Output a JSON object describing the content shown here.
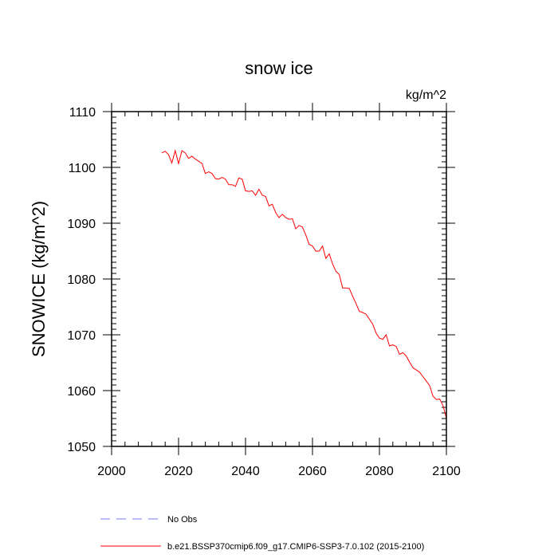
{
  "chart_data": {
    "type": "line",
    "title": "snow ice",
    "units_label": "kg/m^2",
    "ylabel": "SNOWICE  (kg/m^2)",
    "xlabel": "",
    "xlim": [
      2000,
      2100
    ],
    "ylim": [
      1050,
      1110
    ],
    "xticks": [
      2000,
      2020,
      2040,
      2060,
      2080,
      2100
    ],
    "yticks": [
      1050,
      1060,
      1070,
      1080,
      1090,
      1100,
      1110
    ],
    "grid": false,
    "legend_position": "bottom",
    "colors": {
      "model": "#ff0000",
      "obs": "#7777ff"
    },
    "series": [
      {
        "name": "b.e21.BSSP370cmip6.f09_g17.CMIP6-SSP3-7.0.102 (2015-2100)",
        "style": "solid",
        "x": [
          2015,
          2016,
          2017,
          2018,
          2019,
          2020,
          2021,
          2022,
          2023,
          2024,
          2025,
          2026,
          2027,
          2028,
          2029,
          2030,
          2031,
          2032,
          2033,
          2034,
          2035,
          2036,
          2037,
          2038,
          2039,
          2040,
          2041,
          2042,
          2043,
          2044,
          2045,
          2046,
          2047,
          2048,
          2049,
          2050,
          2051,
          2052,
          2053,
          2054,
          2055,
          2056,
          2057,
          2058,
          2059,
          2060,
          2061,
          2062,
          2063,
          2064,
          2065,
          2066,
          2067,
          2068,
          2069,
          2070,
          2071,
          2072,
          2073,
          2074,
          2075,
          2076,
          2077,
          2078,
          2079,
          2080,
          2081,
          2082,
          2083,
          2084,
          2085,
          2086,
          2087,
          2088,
          2089,
          2090,
          2091,
          2092,
          2093,
          2094,
          2095,
          2096,
          2097,
          2098,
          2099,
          2100
        ],
        "values": [
          1102.6,
          1102.9,
          1102.3,
          1100.8,
          1103.0,
          1100.7,
          1103.0,
          1102.6,
          1101.6,
          1102.0,
          1101.5,
          1101.1,
          1100.7,
          1098.9,
          1099.2,
          1098.9,
          1098.0,
          1097.9,
          1098.2,
          1097.9,
          1096.9,
          1096.9,
          1096.6,
          1098.1,
          1097.9,
          1095.8,
          1095.7,
          1095.8,
          1095.0,
          1096.1,
          1095.0,
          1094.8,
          1093.1,
          1093.4,
          1091.9,
          1091.0,
          1091.6,
          1091.0,
          1090.7,
          1090.8,
          1089.0,
          1089.6,
          1089.3,
          1087.9,
          1086.2,
          1085.9,
          1085.0,
          1085.0,
          1085.9,
          1083.7,
          1084.5,
          1082.7,
          1081.4,
          1080.8,
          1078.4,
          1078.4,
          1078.3,
          1076.9,
          1075.6,
          1074.2,
          1074.0,
          1073.7,
          1072.8,
          1071.9,
          1070.3,
          1069.4,
          1069.2,
          1070.0,
          1068.0,
          1068.2,
          1067.9,
          1066.5,
          1066.8,
          1066.2,
          1065.1,
          1064.1,
          1063.7,
          1063.3,
          1062.5,
          1061.7,
          1060.9,
          1059.0,
          1058.4,
          1058.5,
          1057.3,
          1055.0
        ]
      },
      {
        "name": "No Obs",
        "style": "dashed",
        "x": [],
        "values": []
      }
    ]
  }
}
